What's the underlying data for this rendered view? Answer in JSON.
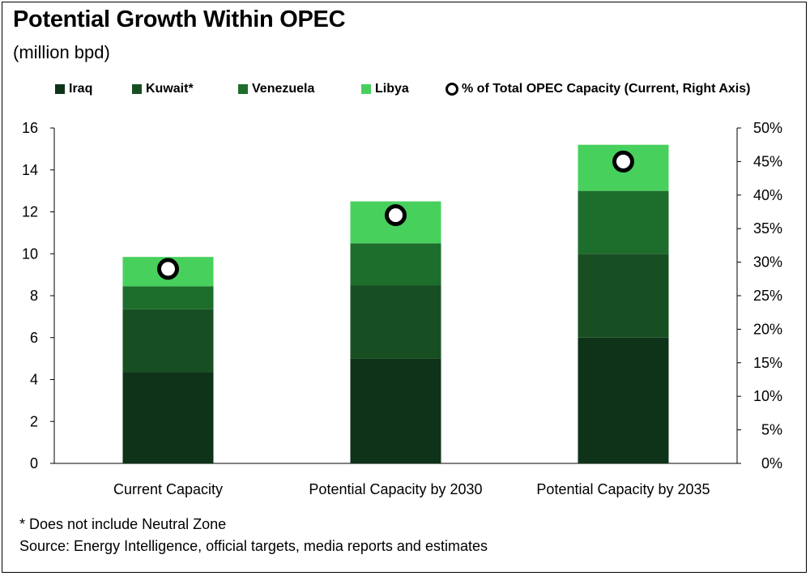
{
  "title": "Potential Growth Within OPEC",
  "subtitle": "(million bpd)",
  "footnote": "* Does not include Neutral Zone",
  "source": "Source: Energy Intelligence, official targets, media reports and estimates",
  "colors": {
    "iraq": "#0e3318",
    "kuwait": "#184f22",
    "venezuela": "#1d6d2c",
    "libya": "#48d05d",
    "marker_fill": "#ffffff",
    "marker_stroke": "#000000"
  },
  "chart_data": {
    "type": "bar",
    "stacked": true,
    "categories": [
      "Current Capacity",
      "Potential Capacity by 2030",
      "Potential Capacity by 2035"
    ],
    "series": [
      {
        "name": "Iraq",
        "values": [
          4.35,
          5.0,
          6.0
        ]
      },
      {
        "name": "Kuwait*",
        "values": [
          3.0,
          3.5,
          4.0
        ]
      },
      {
        "name": "Venezuela",
        "values": [
          1.1,
          2.0,
          3.0
        ]
      },
      {
        "name": "Libya",
        "values": [
          1.4,
          2.0,
          2.2
        ]
      }
    ],
    "secondary_series": {
      "name": "% of Total OPEC Capacity (Current, Right Axis)",
      "type": "scatter",
      "values": [
        29,
        37,
        45
      ],
      "axis": "right"
    },
    "ylim": [
      0,
      16
    ],
    "y_ticks": [
      "0",
      "2",
      "4",
      "6",
      "8",
      "10",
      "12",
      "14",
      "16"
    ],
    "y2lim": [
      0,
      50
    ],
    "y2_ticks": [
      "0%",
      "5%",
      "10%",
      "15%",
      "20%",
      "25%",
      "30%",
      "35%",
      "40%",
      "45%",
      "50%"
    ],
    "grid": false,
    "legend_position": "top"
  }
}
